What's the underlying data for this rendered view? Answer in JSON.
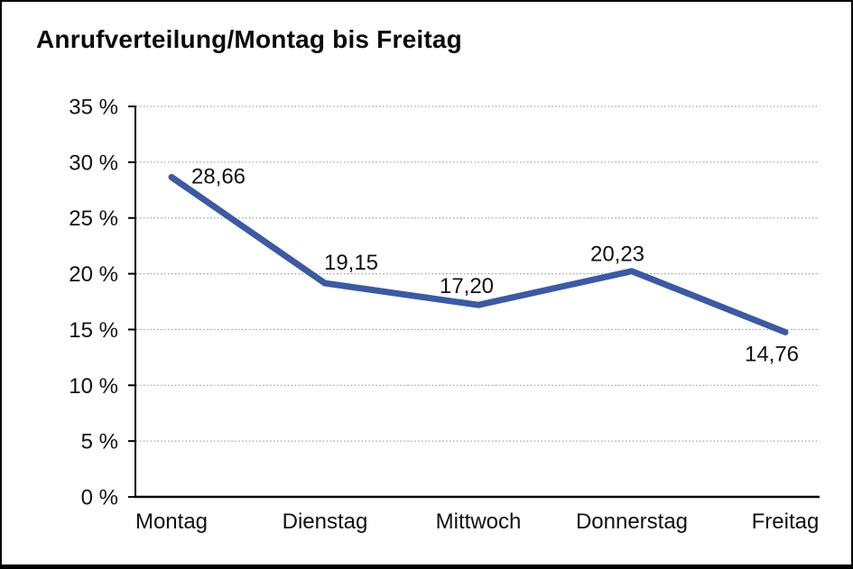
{
  "window": {
    "background": "#ffffff",
    "border_color": "#000000"
  },
  "header": {
    "title": "Anrufverteilung/Montag bis Freitag"
  },
  "chart_data": {
    "type": "line",
    "title": "Anrufverteilung/Montag bis Freitag",
    "categories": [
      "Montag",
      "Dienstag",
      "Mittwoch",
      "Donnerstag",
      "Freitag"
    ],
    "values": [
      28.66,
      19.15,
      17.2,
      20.23,
      14.76
    ],
    "value_labels": [
      "28,66",
      "19,15",
      "17,20",
      "20,23",
      "14,76"
    ],
    "xlabel": "",
    "ylabel": "",
    "ylim": [
      0,
      35
    ],
    "ytick_step": 5,
    "ytick_labels": [
      "0 %",
      "5 %",
      "10 %",
      "15 %",
      "20 %",
      "25 %",
      "30 %",
      "35 %"
    ],
    "grid": "horizontal-dotted",
    "legend": "none",
    "line_color": "#3A5AA5",
    "grid_color": "#8c8c8c",
    "axis_color": "#000000",
    "text_color": "#111111"
  }
}
